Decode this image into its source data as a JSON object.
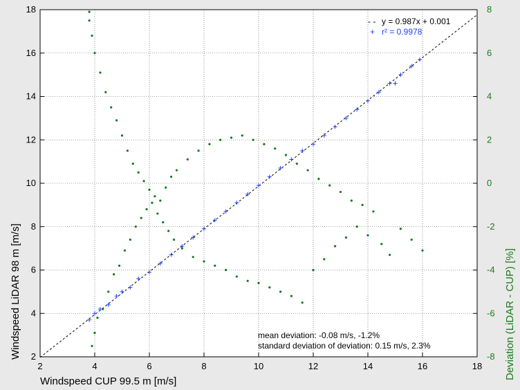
{
  "chart_data": {
    "type": "scatter",
    "xlabel": "Windspeed CUP 99.5 m [m/s]",
    "ylabel": "Windspeed LiDAR 98 m [m/s]",
    "y2label": "Deviation (LiDAR - CUP)  [%]",
    "xlim": [
      2,
      18
    ],
    "ylim": [
      2,
      18
    ],
    "y2lim": [
      -8,
      8
    ],
    "xticks": [
      2,
      4,
      6,
      8,
      10,
      12,
      14,
      16,
      18
    ],
    "yticks": [
      2,
      4,
      6,
      8,
      10,
      12,
      14,
      16,
      18
    ],
    "y2ticks": [
      -8,
      -6,
      -4,
      -2,
      0,
      2,
      4,
      6,
      8
    ],
    "grid": true,
    "legend_position": "top-right",
    "legend": [
      {
        "marker": "- -",
        "text": "y = 0.987x + 0.001",
        "color": "#000000"
      },
      {
        "marker": "+",
        "text": "r² = 0.9978",
        "color": "#1f3fff"
      }
    ],
    "fit": {
      "slope": 0.987,
      "intercept": 0.001
    },
    "annotations": [
      "mean deviation: -0.08 m/s, -1.2%",
      "standard deviation of deviation: 0.15 m/s, 2.3%"
    ],
    "series": [
      {
        "axis": "y2",
        "marker": "dot",
        "color": "#127a12",
        "points": [
          [
            3.8,
            7.9
          ],
          [
            3.9,
            -7.5
          ],
          [
            3.8,
            7.5
          ],
          [
            3.9,
            6.8
          ],
          [
            4.0,
            -6.9
          ],
          [
            4.0,
            6.0
          ],
          [
            4.1,
            -6.2
          ],
          [
            4.2,
            5.1
          ],
          [
            4.3,
            -5.8
          ],
          [
            4.4,
            4.2
          ],
          [
            4.5,
            -5.0
          ],
          [
            4.6,
            3.5
          ],
          [
            4.7,
            -4.2
          ],
          [
            4.8,
            2.9
          ],
          [
            4.9,
            -3.8
          ],
          [
            5.0,
            2.2
          ],
          [
            5.1,
            -3.1
          ],
          [
            5.2,
            1.5
          ],
          [
            5.3,
            -2.6
          ],
          [
            5.4,
            0.9
          ],
          [
            5.5,
            -2.0
          ],
          [
            5.6,
            0.5
          ],
          [
            5.7,
            -1.6
          ],
          [
            5.8,
            0.1
          ],
          [
            5.9,
            -1.2
          ],
          [
            6.0,
            -0.3
          ],
          [
            6.1,
            -0.9
          ],
          [
            6.2,
            -0.6
          ],
          [
            6.3,
            -1.4
          ],
          [
            6.4,
            -0.8
          ],
          [
            6.5,
            -1.8
          ],
          [
            6.6,
            -0.2
          ],
          [
            6.7,
            -2.2
          ],
          [
            6.8,
            0.3
          ],
          [
            6.9,
            -2.6
          ],
          [
            7.0,
            0.6
          ],
          [
            7.2,
            -3.0
          ],
          [
            7.4,
            1.1
          ],
          [
            7.6,
            -3.4
          ],
          [
            7.8,
            1.5
          ],
          [
            8.0,
            -3.6
          ],
          [
            8.2,
            1.8
          ],
          [
            8.4,
            -3.8
          ],
          [
            8.6,
            2.0
          ],
          [
            8.8,
            -4.0
          ],
          [
            9.0,
            2.1
          ],
          [
            9.2,
            -4.3
          ],
          [
            9.4,
            2.2
          ],
          [
            9.6,
            -4.5
          ],
          [
            9.8,
            2.0
          ],
          [
            10.0,
            -4.6
          ],
          [
            10.2,
            1.8
          ],
          [
            10.4,
            -4.8
          ],
          [
            10.6,
            1.6
          ],
          [
            10.8,
            -5.0
          ],
          [
            11.0,
            1.3
          ],
          [
            11.2,
            -5.2
          ],
          [
            11.4,
            0.9
          ],
          [
            11.6,
            -5.5
          ],
          [
            11.8,
            0.6
          ],
          [
            12.0,
            -4.0
          ],
          [
            12.2,
            0.2
          ],
          [
            12.4,
            -3.5
          ],
          [
            12.6,
            -0.1
          ],
          [
            12.8,
            -2.9
          ],
          [
            13.0,
            -0.4
          ],
          [
            13.2,
            -2.5
          ],
          [
            13.4,
            -0.8
          ],
          [
            13.6,
            -2.0
          ],
          [
            13.8,
            -1.0
          ],
          [
            14.0,
            -2.4
          ],
          [
            14.2,
            -1.3
          ],
          [
            14.5,
            -2.8
          ],
          [
            14.8,
            -3.3
          ],
          [
            15.2,
            -2.1
          ],
          [
            15.6,
            -2.6
          ],
          [
            16.0,
            -3.1
          ]
        ]
      },
      {
        "axis": "y",
        "marker": "plus",
        "color": "#1f3fff",
        "points": [
          [
            3.8,
            3.7
          ],
          [
            4.0,
            4.0
          ],
          [
            4.2,
            4.2
          ],
          [
            4.5,
            4.4
          ],
          [
            4.8,
            4.8
          ],
          [
            5.0,
            5.0
          ],
          [
            5.3,
            5.2
          ],
          [
            5.6,
            5.6
          ],
          [
            6.0,
            5.9
          ],
          [
            6.4,
            6.3
          ],
          [
            6.8,
            6.7
          ],
          [
            7.2,
            7.1
          ],
          [
            7.6,
            7.5
          ],
          [
            8.0,
            7.9
          ],
          [
            8.4,
            8.3
          ],
          [
            8.8,
            8.7
          ],
          [
            9.2,
            9.1
          ],
          [
            9.6,
            9.5
          ],
          [
            10.0,
            9.9
          ],
          [
            10.4,
            10.3
          ],
          [
            10.8,
            10.7
          ],
          [
            11.2,
            11.1
          ],
          [
            11.6,
            11.5
          ],
          [
            12.0,
            11.8
          ],
          [
            12.4,
            12.2
          ],
          [
            12.8,
            12.6
          ],
          [
            13.2,
            13.0
          ],
          [
            13.6,
            13.4
          ],
          [
            14.0,
            13.8
          ],
          [
            14.4,
            14.2
          ],
          [
            14.8,
            14.6
          ],
          [
            15.2,
            15.0
          ],
          [
            15.6,
            15.4
          ],
          [
            15.9,
            15.7
          ],
          [
            15.0,
            14.6
          ]
        ]
      }
    ]
  }
}
